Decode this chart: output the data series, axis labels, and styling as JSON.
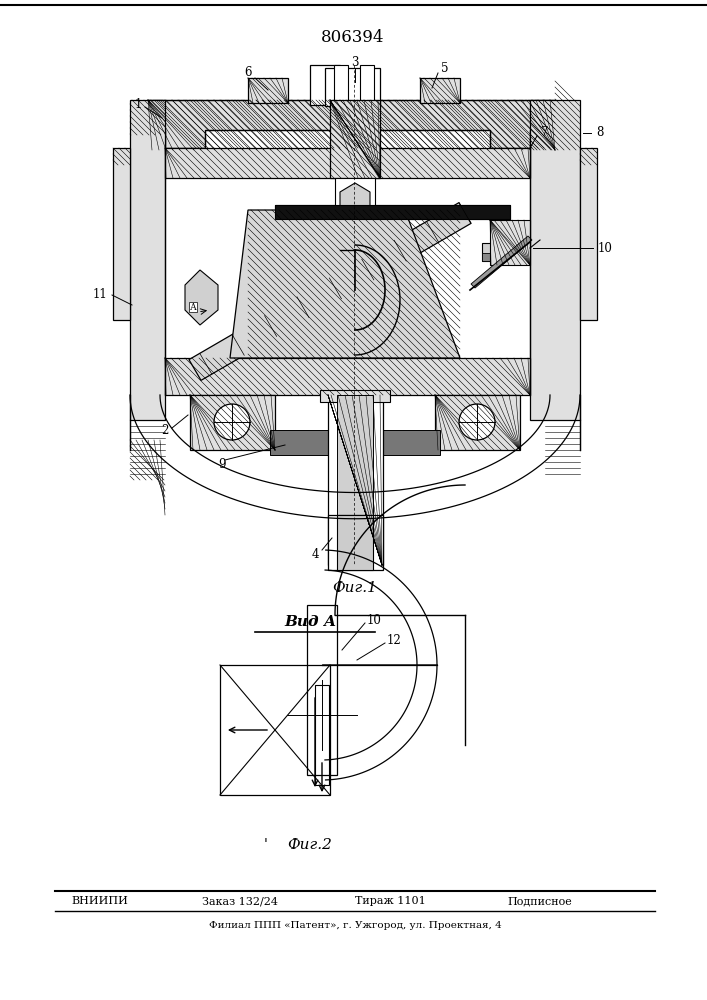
{
  "patent_number": "806394",
  "fig1_caption": "Фиг.1",
  "fig2_caption": "Фиг.2",
  "view_label": "Вид А",
  "footer_line1_parts": [
    "ВНИИПИ",
    "Заказ 132/24",
    "Тираж 1101",
    "Подписное"
  ],
  "footer_line2": "Филиал ППП «Патент», г. Ужгород, ул. Проектная, 4",
  "bg_color": "#ffffff",
  "black": "#000000",
  "hatch_gray": "#c8c8c8",
  "dark_fill": "#111111"
}
